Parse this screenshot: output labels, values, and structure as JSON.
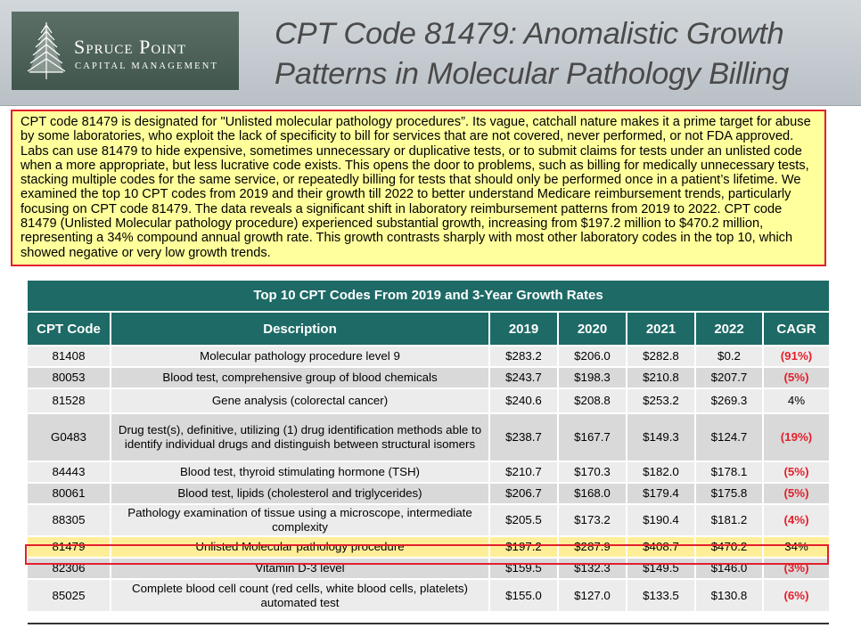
{
  "logo": {
    "name": "Spruce Point",
    "subtitle": "CAPITAL MANAGEMENT",
    "icon": "spruce-tree-icon"
  },
  "title": {
    "line1": "CPT Code 81479: Anomalistic Growth",
    "line2": "Patterns in Molecular Pathology Billing"
  },
  "intro_text": "CPT code 81479 is designated for \"Unlisted molecular pathology procedures”. Its vague, catchall nature makes it a prime target for abuse by some laboratories, who exploit the lack of specificity to bill for services that are not covered, never performed, or not FDA approved. Labs can use 81479 to hide expensive, sometimes unnecessary or duplicative tests, or to submit claims for tests under an unlisted code when a more appropriate, but less lucrative code exists. This opens the door to problems, such as billing for medically unnecessary tests, stacking multiple codes for the same service, or repeatedly billing for tests that should only be performed once in a patient’s lifetime. We examined the top 10 CPT codes from 2019 and their growth till 2022 to better understand Medicare reimbursement trends, particularly focusing on CPT code 81479. The data reveals a significant shift in laboratory reimbursement patterns from 2019 to 2022. CPT code 81479 (Unlisted Molecular pathology procedure) experienced substantial growth, increasing from $197.2 million to $470.2 million, representing a 34% compound annual growth rate. This growth contrasts sharply with most other laboratory codes in the top 10, which showed negative or very low growth trends.",
  "table": {
    "title": "Top 10 CPT Codes From 2019 and 3-Year Growth Rates",
    "headers": [
      "CPT Code",
      "Description",
      "2019",
      "2020",
      "2021",
      "2022",
      "CAGR"
    ],
    "rows": [
      {
        "code": "81408",
        "desc": "Molecular pathology procedure level 9",
        "y2019": "$283.2",
        "y2020": "$206.0",
        "y2021": "$282.8",
        "y2022": "$0.2",
        "cagr": "(91%)"
      },
      {
        "code": "80053",
        "desc": "Blood test, comprehensive group of blood chemicals",
        "y2019": "$243.7",
        "y2020": "$198.3",
        "y2021": "$210.8",
        "y2022": "$207.7",
        "cagr": "(5%)"
      },
      {
        "code": "81528",
        "desc": "Gene analysis (colorectal cancer)",
        "y2019": "$240.6",
        "y2020": "$208.8",
        "y2021": "$253.2",
        "y2022": "$269.3",
        "cagr": "4%"
      },
      {
        "code": "G0483",
        "desc": "Drug test(s), definitive, utilizing (1) drug identification methods able to identify individual drugs and distinguish between structural isomers",
        "y2019": "$238.7",
        "y2020": "$167.7",
        "y2021": "$149.3",
        "y2022": "$124.7",
        "cagr": "(19%)"
      },
      {
        "code": "84443",
        "desc": "Blood test, thyroid stimulating hormone (TSH)",
        "y2019": "$210.7",
        "y2020": "$170.3",
        "y2021": "$182.0",
        "y2022": "$178.1",
        "cagr": "(5%)"
      },
      {
        "code": "80061",
        "desc": "Blood test, lipids (cholesterol and triglycerides)",
        "y2019": "$206.7",
        "y2020": "$168.0",
        "y2021": "$179.4",
        "y2022": "$175.8",
        "cagr": "(5%)"
      },
      {
        "code": "88305",
        "desc": "Pathology examination of tissue using a microscope, intermediate complexity",
        "y2019": "$205.5",
        "y2020": "$173.2",
        "y2021": "$190.4",
        "y2022": "$181.2",
        "cagr": "(4%)"
      },
      {
        "code": "81479",
        "desc": "Unlisted Molecular pathology procedure",
        "y2019": "$197.2",
        "y2020": "$287.9",
        "y2021": "$408.7",
        "y2022": "$470.2",
        "cagr": "34%"
      },
      {
        "code": "82306",
        "desc": "Vitamin D-3 level",
        "y2019": "$159.5",
        "y2020": "$132.3",
        "y2021": "$149.5",
        "y2022": "$146.0",
        "cagr": "(3%)"
      },
      {
        "code": "85025",
        "desc": "Complete blood cell count (red cells, white blood cells, platelets) automated test",
        "y2019": "$155.0",
        "y2020": "$127.0",
        "y2021": "$133.5",
        "y2022": "$130.8",
        "cagr": "(6%)"
      }
    ]
  },
  "colors": {
    "header_teal": "#1e6a66",
    "highlight_red": "#e3202c",
    "intro_bg": "#ffff9c",
    "highlight_row": "#ffee98",
    "logo_green": "#4a5e55"
  }
}
